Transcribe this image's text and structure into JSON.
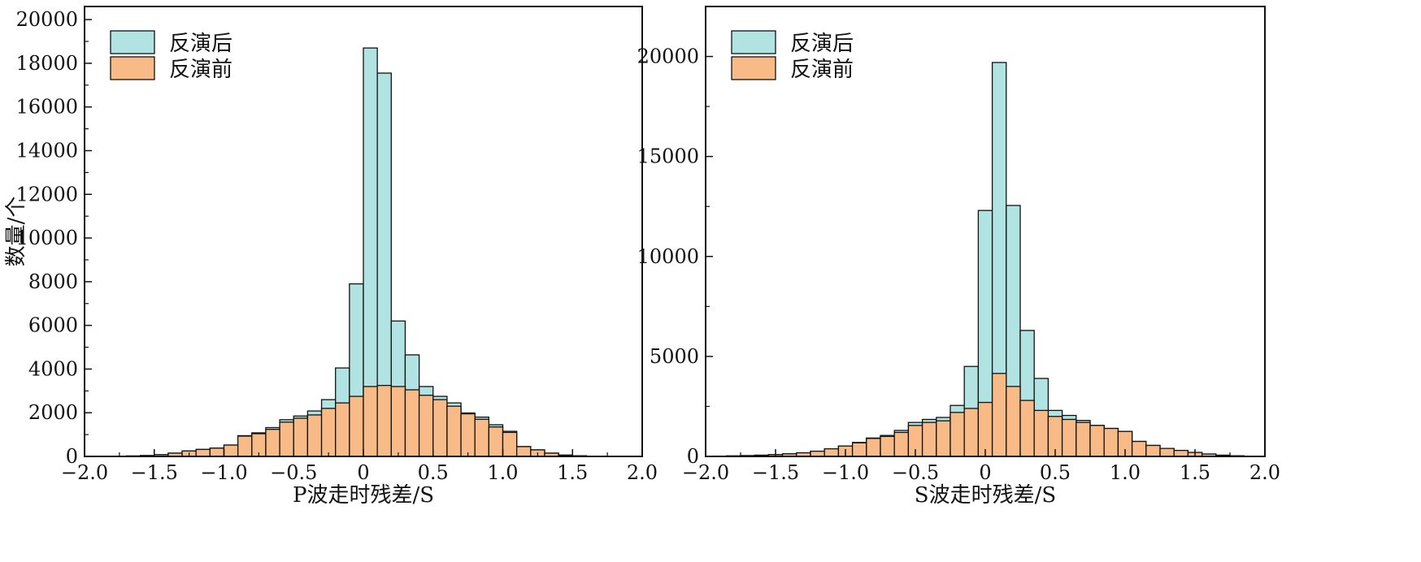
{
  "colors": {
    "after": "#b1e3e3",
    "before": "#f8bb87",
    "edge": "#111111"
  },
  "chart_data": [
    {
      "type": "bar",
      "xlabel": "P波走时残差/S",
      "ylabel": "数量/个",
      "xlim": [
        -2.0,
        2.0
      ],
      "ylim": [
        0,
        20600
      ],
      "xticks": [
        -2.0,
        -1.5,
        -1.0,
        -0.5,
        0,
        0.5,
        1.0,
        1.5,
        2.0
      ],
      "xtick_labels": [
        "−2.0",
        "−1.5",
        "−1.0",
        "−0.5",
        "0",
        "0.5",
        "1.0",
        "1.5",
        "2.0"
      ],
      "yticks": [
        0,
        2000,
        4000,
        6000,
        8000,
        10000,
        12000,
        14000,
        16000,
        18000,
        20000
      ],
      "ytick_labels": [
        "0",
        "2000",
        "4000",
        "6000",
        "8000",
        "10000",
        "12000",
        "14000",
        "16000",
        "18000",
        "20000"
      ],
      "legend_position": "top-left",
      "bin_width": 0.1,
      "bin_starts": [
        -1.7,
        -1.6,
        -1.5,
        -1.4,
        -1.3,
        -1.2,
        -1.1,
        -1.0,
        -0.9,
        -0.8,
        -0.7,
        -0.6,
        -0.5,
        -0.4,
        -0.3,
        -0.2,
        -0.1,
        0.0,
        0.1,
        0.2,
        0.3,
        0.4,
        0.5,
        0.6,
        0.7,
        0.8,
        0.9,
        1.0,
        1.1,
        1.2,
        1.3,
        1.4,
        1.5
      ],
      "series": [
        {
          "name": "反演后",
          "values": [
            20,
            40,
            80,
            150,
            250,
            320,
            380,
            520,
            950,
            1080,
            1320,
            1680,
            1850,
            2080,
            2600,
            4050,
            7900,
            18700,
            17550,
            6200,
            4650,
            3200,
            2750,
            2450,
            1990,
            1800,
            1450,
            1150,
            450,
            300,
            150,
            60,
            30
          ]
        },
        {
          "name": "反演前",
          "values": [
            20,
            40,
            80,
            150,
            250,
            320,
            380,
            520,
            930,
            1040,
            1240,
            1570,
            1750,
            1900,
            2200,
            2450,
            2750,
            3200,
            3250,
            3200,
            3050,
            2800,
            2600,
            2300,
            1950,
            1700,
            1350,
            1100,
            450,
            300,
            150,
            60,
            30
          ]
        }
      ]
    },
    {
      "type": "bar",
      "xlabel": "S波走时残差/S",
      "ylabel": "",
      "xlim": [
        -2.0,
        2.0
      ],
      "ylim": [
        0,
        22500
      ],
      "xticks": [
        -2.0,
        -1.5,
        -1.0,
        -0.5,
        0,
        0.5,
        1.0,
        1.5,
        2.0
      ],
      "xtick_labels": [
        "−2.0",
        "−1.5",
        "−1.0",
        "−0.5",
        "0",
        "0.5",
        "1.0",
        "1.5",
        "2.0"
      ],
      "yticks": [
        0,
        5000,
        10000,
        15000,
        20000
      ],
      "ytick_labels": [
        "0",
        "5000",
        "10000",
        "15000",
        "20000"
      ],
      "legend_position": "top-left",
      "bin_width": 0.1,
      "bin_starts": [
        -1.95,
        -1.85,
        -1.75,
        -1.65,
        -1.55,
        -1.45,
        -1.35,
        -1.25,
        -1.15,
        -1.05,
        -0.95,
        -0.85,
        -0.75,
        -0.65,
        -0.55,
        -0.45,
        -0.35,
        -0.25,
        -0.15,
        -0.05,
        0.05,
        0.15,
        0.25,
        0.35,
        0.45,
        0.55,
        0.65,
        0.75,
        0.85,
        0.95,
        1.05,
        1.15,
        1.25,
        1.35,
        1.45,
        1.55,
        1.65,
        1.75
      ],
      "series": [
        {
          "name": "反演后",
          "values": [
            15,
            25,
            40,
            60,
            90,
            130,
            180,
            260,
            380,
            520,
            700,
            920,
            1050,
            1300,
            1700,
            1850,
            1950,
            2550,
            4500,
            12300,
            19700,
            12550,
            6300,
            3900,
            2300,
            2050,
            1800,
            1550,
            1400,
            1250,
            750,
            550,
            400,
            300,
            200,
            120,
            60,
            30
          ]
        },
        {
          "name": "反演前",
          "values": [
            15,
            25,
            40,
            60,
            90,
            130,
            180,
            260,
            380,
            520,
            680,
            900,
            1000,
            1200,
            1550,
            1700,
            1780,
            2200,
            2400,
            2700,
            4150,
            3500,
            2800,
            2300,
            2000,
            1850,
            1700,
            1550,
            1400,
            1250,
            750,
            550,
            400,
            300,
            200,
            120,
            60,
            30
          ]
        }
      ]
    }
  ]
}
